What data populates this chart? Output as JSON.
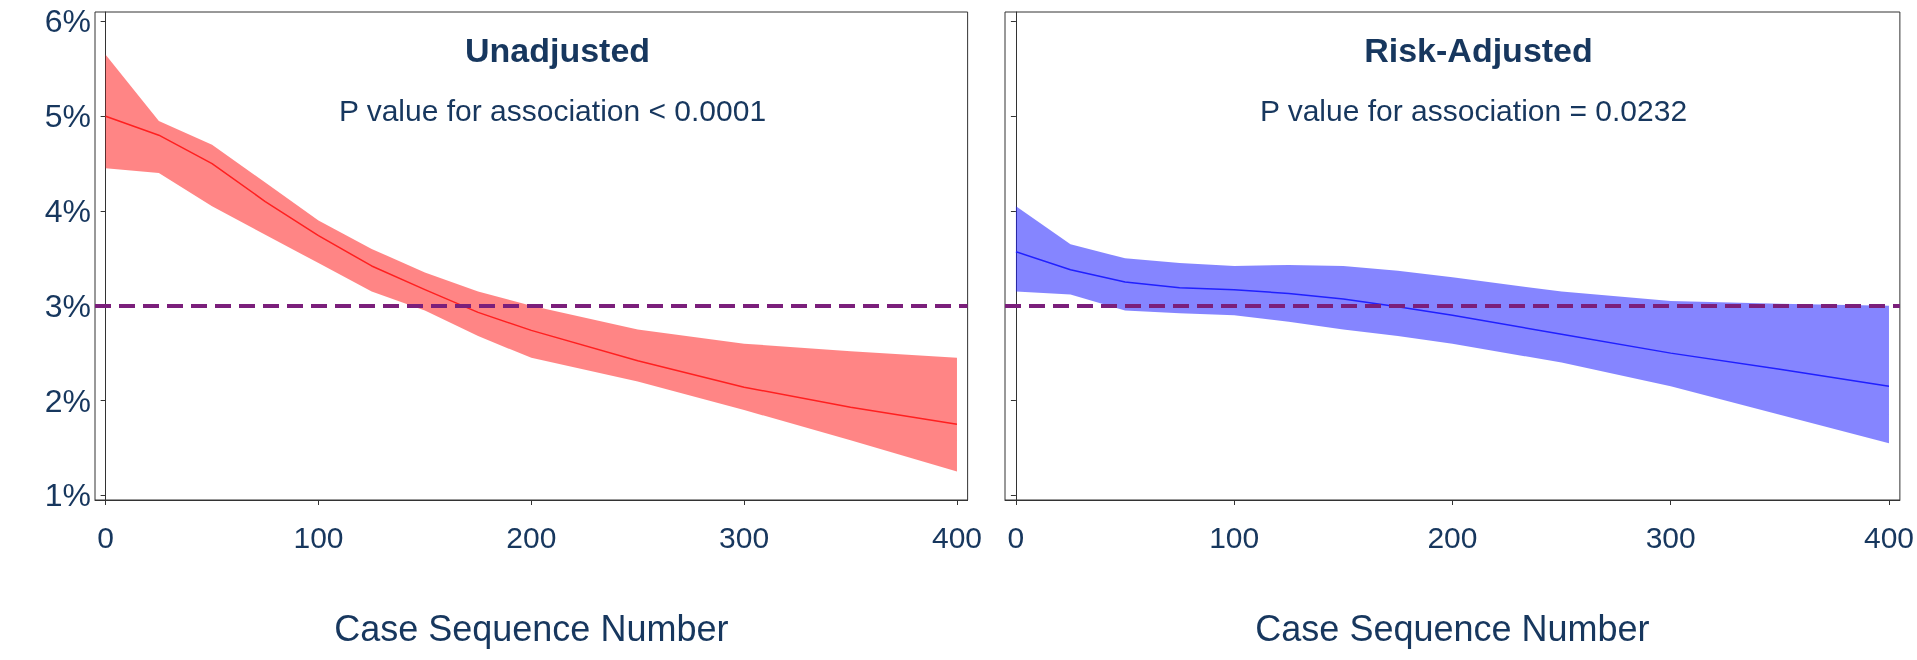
{
  "chart_data": [
    {
      "type": "line",
      "title": "Unadjusted",
      "annotations": [
        "P value for association < 0.0001"
      ],
      "xlabel": "Case Sequence Number",
      "x": [
        0,
        25,
        50,
        75,
        100,
        125,
        150,
        175,
        200,
        250,
        300,
        350,
        400
      ],
      "series": [
        {
          "color": "#ff2020",
          "values": [
            5.0,
            4.8,
            4.5,
            4.1,
            3.74,
            3.42,
            3.17,
            2.93,
            2.74,
            2.42,
            2.14,
            1.93,
            1.75
          ],
          "lower": [
            4.45,
            4.4,
            4.05,
            3.75,
            3.45,
            3.15,
            2.95,
            2.68,
            2.45,
            2.2,
            1.9,
            1.58,
            1.25
          ],
          "upper": [
            5.65,
            4.95,
            4.7,
            4.3,
            3.9,
            3.6,
            3.35,
            3.15,
            3.0,
            2.75,
            2.6,
            2.52,
            2.45
          ]
        }
      ],
      "xlim": [
        -5,
        405
      ],
      "xticks": [
        0,
        100,
        200,
        300,
        400
      ],
      "ylim": [
        0.95,
        6.1
      ],
      "yticks": [
        {
          "value": 1,
          "label": "1%"
        },
        {
          "value": 2,
          "label": "2%"
        },
        {
          "value": 3,
          "label": "3%"
        },
        {
          "value": 4,
          "label": "4%"
        },
        {
          "value": 5,
          "label": "5%"
        },
        {
          "value": 6,
          "label": "6%"
        }
      ],
      "ref_lines": [
        {
          "axis": "y",
          "value": 3,
          "color": "#7b1f7b",
          "line_style": "dashed"
        }
      ],
      "grid": false
    },
    {
      "type": "line",
      "title": "Risk-Adjusted",
      "annotations": [
        "P value for association = 0.0232"
      ],
      "xlabel": "Case Sequence Number",
      "x": [
        0,
        25,
        50,
        75,
        100,
        125,
        150,
        175,
        200,
        250,
        300,
        350,
        400
      ],
      "series": [
        {
          "color": "#2020ff",
          "values": [
            3.57,
            3.38,
            3.25,
            3.19,
            3.17,
            3.13,
            3.07,
            2.99,
            2.9,
            2.7,
            2.5,
            2.33,
            2.15
          ],
          "lower": [
            3.15,
            3.12,
            2.95,
            2.92,
            2.9,
            2.83,
            2.75,
            2.68,
            2.6,
            2.4,
            2.15,
            1.85,
            1.55
          ],
          "upper": [
            4.05,
            3.65,
            3.5,
            3.45,
            3.42,
            3.43,
            3.42,
            3.37,
            3.3,
            3.15,
            3.05,
            3.02,
            3.0
          ]
        }
      ],
      "xlim": [
        -5,
        405
      ],
      "xticks": [
        0,
        100,
        200,
        300,
        400
      ],
      "ylim": [
        0.95,
        6.1
      ],
      "yticks": [
        {
          "value": 1,
          "label": null
        },
        {
          "value": 2,
          "label": null
        },
        {
          "value": 3,
          "label": null
        },
        {
          "value": 4,
          "label": null
        },
        {
          "value": 5,
          "label": null
        },
        {
          "value": 6,
          "label": null
        }
      ],
      "tick_labels": "x",
      "ref_lines": [
        {
          "axis": "y",
          "value": 3,
          "color": "#7b1f7b",
          "line_style": "dashed"
        }
      ],
      "grid": false
    }
  ]
}
